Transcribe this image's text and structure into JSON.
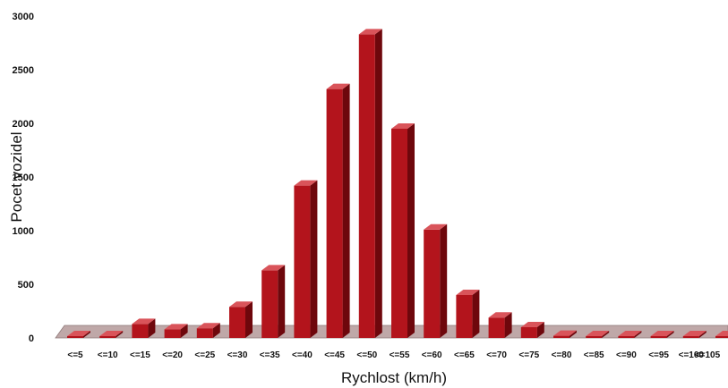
{
  "chart_data": {
    "type": "bar",
    "title": "",
    "xlabel": "Rychlost (km/h)",
    "ylabel": "Pocet vozidel",
    "categories": [
      "<=5",
      "<=10",
      "<=15",
      "<=20",
      "<=25",
      "<=30",
      "<=35",
      "<=40",
      "<=45",
      "<=50",
      "<=55",
      "<=60",
      "<=65",
      "<=70",
      "<=75",
      "<=80",
      "<=85",
      "<=90",
      "<=95",
      "<=100",
      "<=105"
    ],
    "values": [
      10,
      15,
      130,
      80,
      90,
      290,
      630,
      1420,
      2320,
      2830,
      1950,
      1010,
      400,
      190,
      100,
      20,
      15,
      10,
      15,
      15,
      10
    ],
    "y_ticks": [
      "0",
      "500",
      "1000",
      "1500",
      "2000",
      "2500",
      "3000"
    ],
    "ylim": [
      0,
      3000
    ],
    "grid": false,
    "legend": "none",
    "colors": {
      "bar_front": "#b3141c",
      "bar_side": "#6e070c",
      "bar_top": "#d9545a",
      "floor": "#bfa8a8"
    }
  }
}
